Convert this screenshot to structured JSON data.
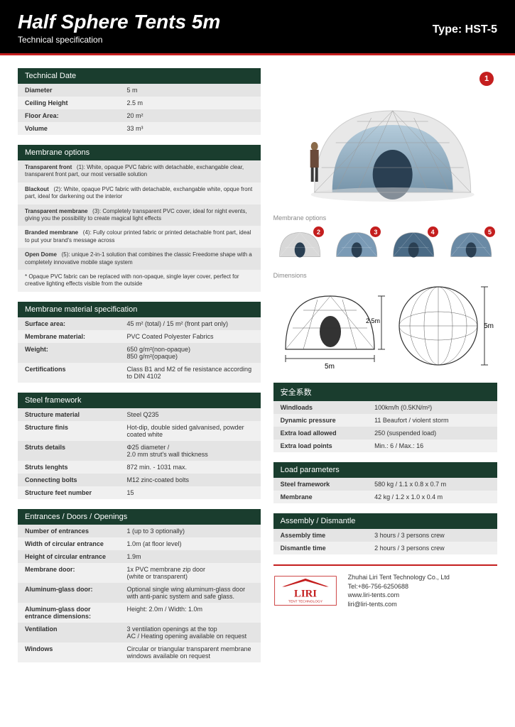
{
  "header": {
    "title": "Half Sphere Tents 5m",
    "subtitle": "Technical specification",
    "type_label": "Type: HST-5"
  },
  "colors": {
    "header_bg": "#000000",
    "accent": "#c41e1e",
    "section_bg": "#1a3d2e",
    "row_even": "#f0f0f0",
    "row_odd": "#e4e4e4"
  },
  "technical_date": {
    "header": "Technical Date",
    "rows": [
      {
        "k": "Diameter",
        "v": "5 m"
      },
      {
        "k": "Ceiling Height",
        "v": "2.5 m"
      },
      {
        "k": "Floor Area:",
        "v": "20 m²"
      },
      {
        "k": "Volume",
        "v": "33 m³"
      }
    ]
  },
  "membrane_options": {
    "header": "Membrane options",
    "items": [
      {
        "t": "Transparent front",
        "n": "(1):",
        "d": "White, opaque PVC fabric with detachable, exchangable clear, transparent front part, our most versatile solution"
      },
      {
        "t": "Blackout",
        "n": "(2):",
        "d": "White, opaque PVC fabric with detachable, exchangable white, opque front part, ideal for darkening out the interior"
      },
      {
        "t": "Transparent membrane",
        "n": "(3):",
        "d": "Completely transparent PVC cover, ideal for night events, giving you the possibility to create magical light effects"
      },
      {
        "t": "Branded membrane",
        "n": "(4):",
        "d": "Fully colour printed fabric or printed detachable front part, ideal to put your brand's message across"
      },
      {
        "t": "Open Dome",
        "n": "(5):",
        "d": "unique 2-in-1 solution that combines the classic Freedome shape with a completely innovative mobile stage system"
      }
    ],
    "note": "* Opaque PVC fabric can be replaced with non-opaque, single layer cover, perfect for creative lighting effects visible from the outside"
  },
  "membrane_spec": {
    "header": "Membrane material specification",
    "rows": [
      {
        "k": "Surface area:",
        "v": "45 m² (total) / 15 m² (front part only)"
      },
      {
        "k": "Membrane material:",
        "v": "PVC Coated Polyester Fabrics"
      },
      {
        "k": "Weight:",
        "v": "650 g/m²(non-opaque)\n850 g/m²(opaque)"
      },
      {
        "k": "Certifications",
        "v": "Class B1 and M2 of fie resistance according to DIN 4102"
      }
    ]
  },
  "steel": {
    "header": "Steel framework",
    "rows": [
      {
        "k": "Structure material",
        "v": "Steel Q235"
      },
      {
        "k": "Structure finis",
        "v": "Hot-dip, double sided galvanised, powder coated white"
      },
      {
        "k": "Struts details",
        "v": "Φ25 diameter /\n2.0 mm strut's wall thickness"
      },
      {
        "k": "Struts lenghts",
        "v": "872 min. - 1031 max."
      },
      {
        "k": "Connecting bolts",
        "v": "M12 zinc-coated bolts"
      },
      {
        "k": "Structure feet number",
        "v": "15"
      }
    ]
  },
  "entrances": {
    "header": "Entrances / Doors / Openings",
    "rows": [
      {
        "k": "Number of entrances",
        "v": "1 (up to 3 optionally)"
      },
      {
        "k": "Width of circular entrance",
        "v": "1.0m (at floor level)"
      },
      {
        "k": "Height of circular entrance",
        "v": "1.9m"
      },
      {
        "k": "Membrane door:",
        "v": "1x PVC membrane zip door\n(white or transparent)"
      },
      {
        "k": "Aluminum-glass door:",
        "v": "Optional single wing aluminum-glass door with anti-panic system and safe glass."
      },
      {
        "k": "Aluminum-glass door entrance dimensions:",
        "v": "Height: 2.0m  /  Width: 1.0m"
      },
      {
        "k": "Ventilation",
        "v": "3 ventilation openings at the top\nAC / Heating opening available on request"
      },
      {
        "k": "Windows",
        "v": "Circular or triangular transparent membrane  windows available on request"
      }
    ]
  },
  "safety": {
    "header": "安全系数",
    "rows": [
      {
        "k": "Windloads",
        "v": "100km/h  (0.5KN/m²)"
      },
      {
        "k": "Dynamic pressure",
        "v": "11 Beaufort / violent storm"
      },
      {
        "k": "Extra load allowed",
        "v": "250 (suspended load)"
      },
      {
        "k": "Extra load points",
        "v": "Min.: 6  /  Max.: 16"
      }
    ]
  },
  "load": {
    "header": "Load parameters",
    "rows": [
      {
        "k": "Steel framework",
        "v": "580 kg /  1.1 x 0.8 x 0.7 m"
      },
      {
        "k": "Membrane",
        "v": "42 kg  /  1.2 x 1.0 x 0.4 m"
      }
    ]
  },
  "assembly": {
    "header": "Assembly / Dismantle",
    "rows": [
      {
        "k": "Assembly time",
        "v": "3 hours / 3 persons crew"
      },
      {
        "k": "Dismantle time",
        "v": "2 hours / 3 persons crew"
      }
    ]
  },
  "labels": {
    "membrane_options": "Membrane options",
    "dimensions": "Dimensions"
  },
  "dimensions": {
    "width": "5m",
    "height": "2.5m",
    "full_height": "5m"
  },
  "company": {
    "logo_top": "LIRI",
    "logo_bottom": "TENT TECHNOLOGY",
    "name": "Zhuhai Liri Tent Technology Co., Ltd",
    "tel": "Tel:+86-756-6250688",
    "web": "www.liri-tents.com",
    "email": "liri@liri-tents.com"
  }
}
